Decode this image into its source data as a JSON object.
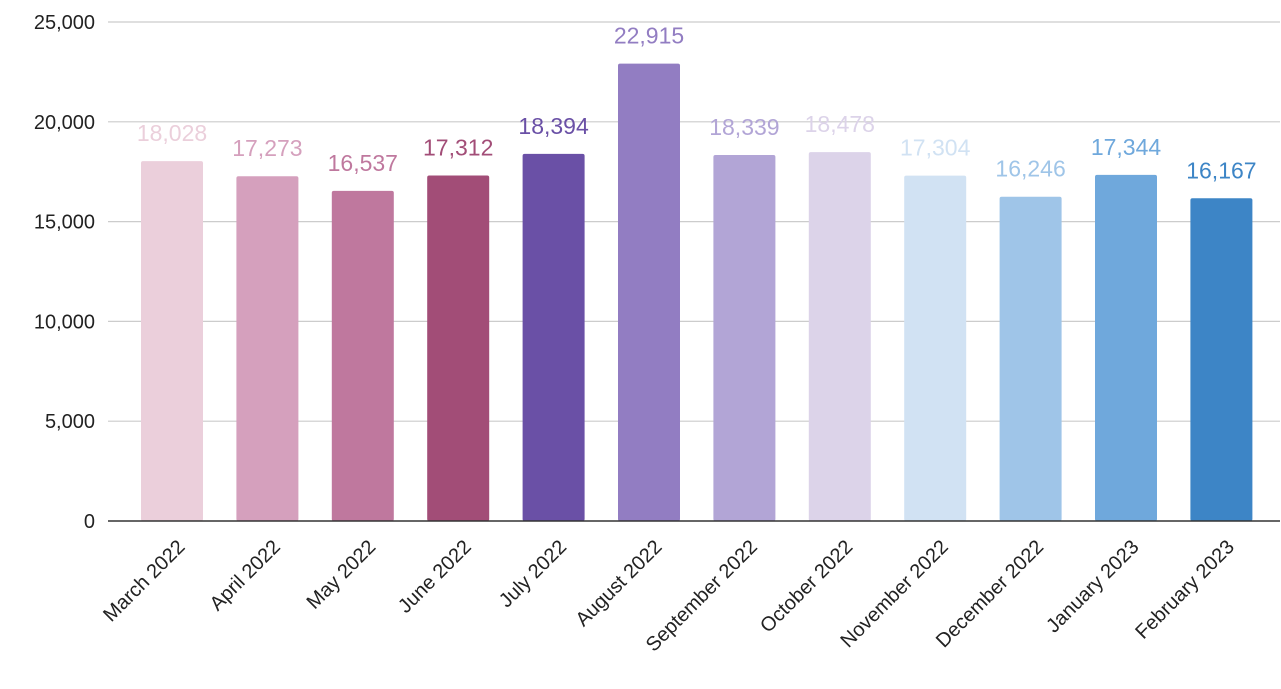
{
  "chart_data": {
    "type": "bar",
    "title": "",
    "xlabel": "",
    "ylabel": "",
    "ylim": [
      0,
      25000
    ],
    "yticks": [
      0,
      5000,
      10000,
      15000,
      20000,
      25000
    ],
    "ytick_labels": [
      "0",
      "5,000",
      "10,000",
      "15,000",
      "20,000",
      "25,000"
    ],
    "grid": true,
    "legend": "none",
    "categories": [
      "March 2022",
      "April 2022",
      "May 2022",
      "June 2022",
      "July 2022",
      "August 2022",
      "September 2022",
      "October 2022",
      "November 2022",
      "December 2022",
      "January 2023",
      "February 2023"
    ],
    "values": [
      18028,
      17273,
      16537,
      17312,
      18394,
      22915,
      18339,
      18478,
      17304,
      16246,
      17344,
      16167
    ],
    "value_labels": [
      "18,028",
      "17,273",
      "16,537",
      "17,312",
      "18,394",
      "22,915",
      "18,339",
      "18,478",
      "17,304",
      "16,246",
      "17,344",
      "16,167"
    ],
    "colors": [
      "#ebcfdb",
      "#d5a0bd",
      "#bf789e",
      "#a24d77",
      "#6a50a6",
      "#927dc2",
      "#b2a5d6",
      "#dcd3e9",
      "#d1e2f3",
      "#9fc5e8",
      "#6fa8dc",
      "#3d85c6"
    ]
  }
}
